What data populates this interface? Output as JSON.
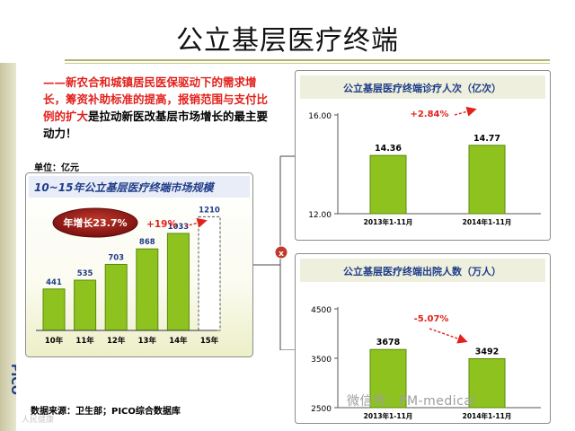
{
  "slide": {
    "title": "公立基层医疗终端",
    "intro_red": "——新农合和城镇居民医保驱动下的需求增长，筹资补助标准的提高，报销范围与支付比例的扩大",
    "intro_black": "是拉动新医改基层市场增长的最主要动力！",
    "unit_label": "单位：亿元",
    "source": "数据来源：卫生部；PICO综合数据库",
    "watermark": "微信号：PM-medical",
    "watermark_bottom": "人民健康",
    "connector_badge": "x",
    "logo_text": "PICO"
  },
  "colors": {
    "bar_fill": "#8dc21f",
    "bar_stroke": "#5a8a0a",
    "panel_border": "#8c8c8c",
    "title_blue": "#1f3c88",
    "value_blue": "#1f3c88",
    "growth_red": "#e2211c",
    "accent_line": "#b5b56a"
  },
  "chart_data": [
    {
      "type": "bar",
      "title": "10~15年公立基层医疗终端市场规模",
      "categories": [
        "10年",
        "11年",
        "12年",
        "13年",
        "14年",
        "15年"
      ],
      "values": [
        441,
        535,
        703,
        868,
        1033,
        1210
      ],
      "forecast_index": 5,
      "ylim": [
        0,
        1300
      ],
      "badge": "年增长23.7%",
      "growth_label": "+19%"
    },
    {
      "type": "bar",
      "title": "公立基层医疗终端诊疗人次（亿次）",
      "categories": [
        "2013年1-11月",
        "2014年1-11月"
      ],
      "values": [
        14.36,
        14.77
      ],
      "ylim": [
        12.0,
        16.0
      ],
      "yticks": [
        "16.00",
        "12.00"
      ],
      "growth_label": "+2.84%"
    },
    {
      "type": "bar",
      "title": "公立基层医疗终端出院人数（万人）",
      "categories": [
        "2013年1-11月",
        "2014年1-11月"
      ],
      "values": [
        3678,
        3492
      ],
      "ylim": [
        2500,
        4500
      ],
      "yticks": [
        "4500",
        "3500",
        "2500"
      ],
      "growth_label": "-5.07%"
    }
  ]
}
